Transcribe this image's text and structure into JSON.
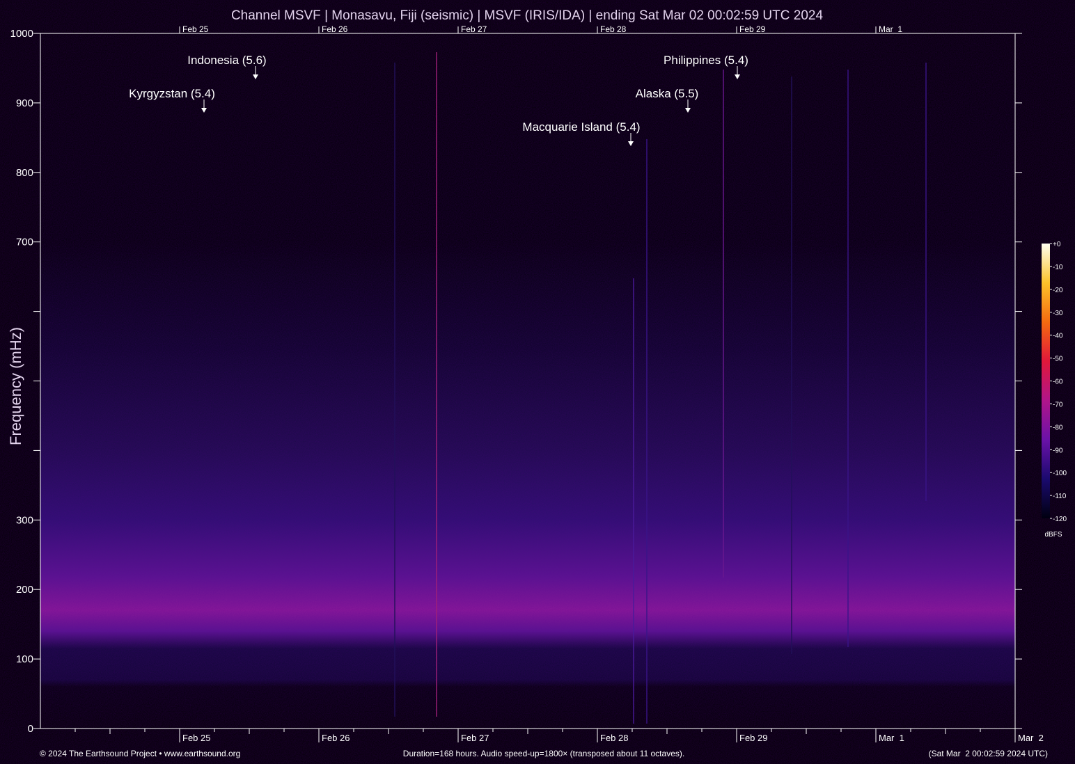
{
  "chart_data": {
    "type": "spectrogram",
    "title": "Channel MSVF | Monasavu, Fiji (seismic) | MSVF (IRIS/IDA) | ending Sat Mar 02 00:02:59 UTC 2024",
    "y_label": "Frequency (mHz)",
    "ylim": [
      0,
      1000
    ],
    "yticks": [
      0,
      100,
      200,
      300,
      {
        "value": 400,
        "label": null
      },
      {
        "value": 500,
        "label": null
      },
      {
        "value": 600,
        "label": null
      },
      700,
      800,
      900,
      1000
    ],
    "xticks": [
      "Feb 25",
      "Feb 26",
      "Feb 27",
      "Feb 28",
      "Feb 29",
      "Mar  1",
      "Mar  2"
    ],
    "annotations": [
      "Indonesia (5.6)",
      "Kyrgyzstan (5.4)",
      "Macquarie Island (5.4)",
      "Alaska (5.5)",
      "Philippines (5.4)"
    ],
    "colorbar": {
      "label": "dBFS",
      "lim": [
        -120,
        0
      ],
      "ticks": [
        {
          "value": 0,
          "label": "+0"
        },
        -10,
        -20,
        -30,
        -40,
        -50,
        -60,
        -70,
        -80,
        -90,
        -100,
        -110,
        -120
      ],
      "colors": [
        "#000010",
        "#1a0a6e",
        "#6a12a8",
        "#b0158a",
        "#e0183a",
        "#f56a10",
        "#fbc22a",
        "#fffff0"
      ]
    },
    "footer": {
      "left": "© 2024 The Earthsound Project • www.earthsound.org",
      "center": "Duration=168 hours. Audio speed-up=1800× (transposed about 11 octaves).",
      "right": "(Sat Mar  2 00:02:59 2024 UTC)"
    }
  }
}
